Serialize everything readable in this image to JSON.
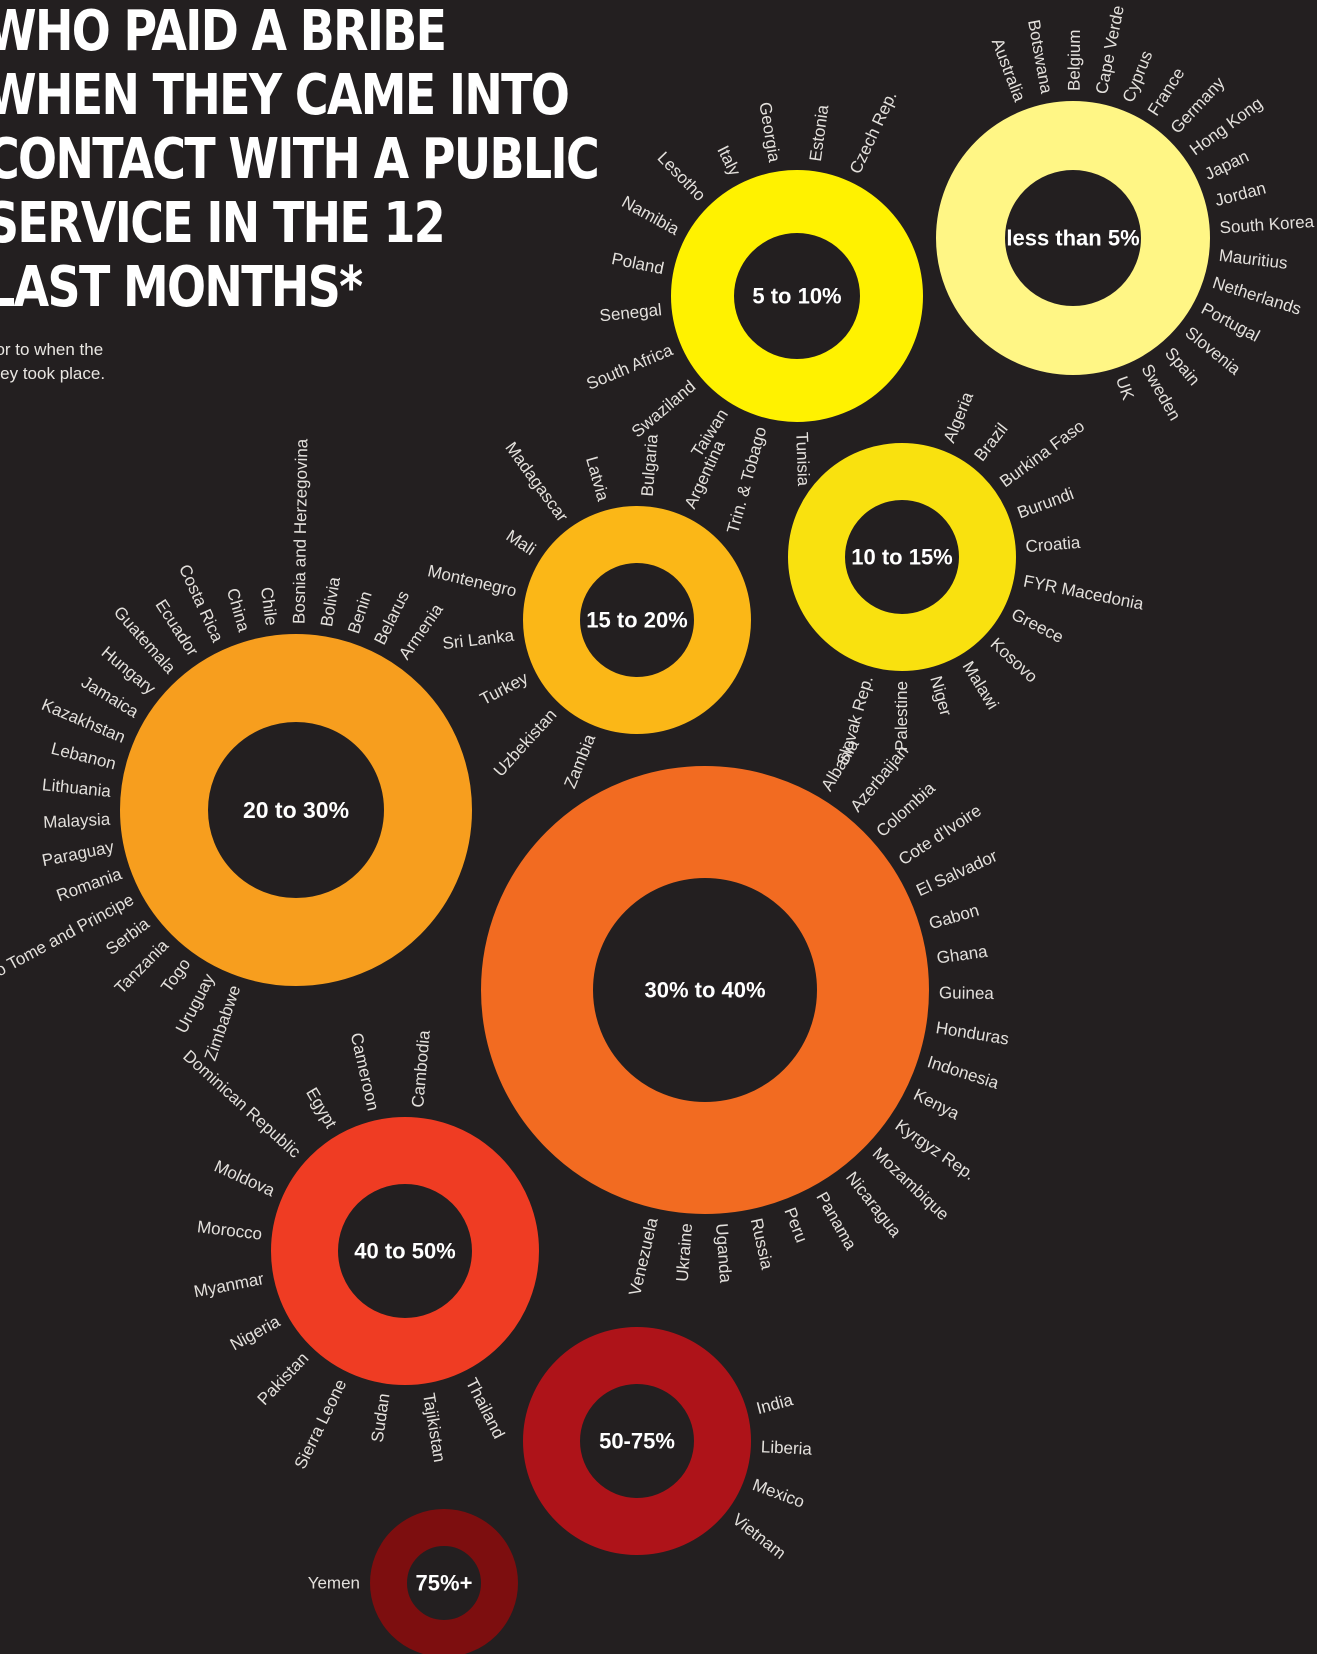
{
  "title_lines": [
    "WHO PAID A BRIBE",
    "WHEN THEY CAME INTO",
    "CONTACT WITH A PUBLIC",
    "SERVICE IN THE 12",
    "LAST MONTHS*"
  ],
  "note_lines": [
    "rior to when the",
    "rvey took place."
  ],
  "chart_data": {
    "type": "donut-groups",
    "groups": [
      {
        "label": "less than 5%",
        "color": "#fff685",
        "countries": [
          "Australia",
          "Botswana",
          "Belgium",
          "Cape Verde",
          "Cyprus",
          "France",
          "Germany",
          "Hong Kong",
          "Japan",
          "Jordan",
          "South Korea",
          "Mauritius",
          "Netherlands",
          "Portugal",
          "Slovenia",
          "Spain",
          "Sweden",
          "UK"
        ]
      },
      {
        "label": "5 to 10%",
        "color": "#fff200",
        "countries": [
          "Tunisia",
          "Trin. & Tobago",
          "Taiwan",
          "Swaziland",
          "South Africa",
          "Senegal",
          "Poland",
          "Namibia",
          "Lesotho",
          "Italy",
          "Georgia",
          "Estonia",
          "Czech Rep."
        ]
      },
      {
        "label": "10 to 15%",
        "color": "#f9e10f",
        "countries": [
          "Algeria",
          "Brazil",
          "Burkina Faso",
          "Burundi",
          "Croatia",
          "FYR Macedonia",
          "Greece",
          "Kosovo",
          "Malawi",
          "Niger",
          "Palestine",
          "Slovak Rep."
        ]
      },
      {
        "label": "15 to 20%",
        "color": "#fbb717",
        "countries": [
          "Zambia",
          "Uzbekistan",
          "Turkey",
          "Sri Lanka",
          "Montenegro",
          "Mali",
          "Madagascar",
          "Latvia",
          "Bulgaria",
          "Argentina"
        ]
      },
      {
        "label": "20 to 30%",
        "color": "#f79e1e",
        "countries": [
          "Zimbabwe",
          "Uruguay",
          "Togo",
          "Tanzania",
          "Serbia",
          "Sao Tome and Principe",
          "Romania",
          "Paraguay",
          "Malaysia",
          "Lithuania",
          "Lebanon",
          "Kazakhstan",
          "Jamaica",
          "Hungary",
          "Guatemala",
          "Ecuador",
          "Costa Rica",
          "China",
          "Chile",
          "Bosnia and Herzegovina",
          "Bolivia",
          "Benin",
          "Belarus",
          "Armenia"
        ]
      },
      {
        "label": "30% to 40%",
        "color": "#f26b21",
        "countries": [
          "Albania",
          "Azerbaijan",
          "Colombia",
          "Cote d'Ivoire",
          "El Salvador",
          "Gabon",
          "Ghana",
          "Guinea",
          "Honduras",
          "Indonesia",
          "Kenya",
          "Kyrgyz Rep.",
          "Mozambique",
          "Nicaragua",
          "Panama",
          "Peru",
          "Russia",
          "Uganda",
          "Ukraine",
          "Venezuela"
        ]
      },
      {
        "label": "40 to 50%",
        "color": "#ef3c23",
        "countries": [
          "Thailand",
          "Tajikistan",
          "Sudan",
          "Sierra Leone",
          "Pakistan",
          "Nigeria",
          "Myanmar",
          "Morocco",
          "Moldova",
          "Dominican Republic",
          "Egypt",
          "Cameroon",
          "Cambodia"
        ]
      },
      {
        "label": "50-75%",
        "color": "#ae1319",
        "countries": [
          "India",
          "Liberia",
          "Mexico",
          "Vietnam"
        ]
      },
      {
        "label": "75%+",
        "color": "#7d0e0f",
        "countries": [
          "Yemen"
        ]
      }
    ]
  }
}
